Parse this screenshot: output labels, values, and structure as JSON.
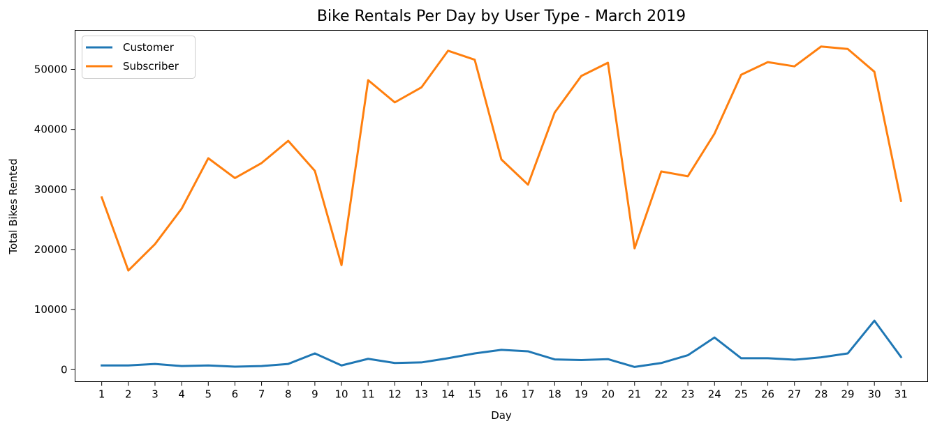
{
  "chart_data": {
    "type": "line",
    "title": "Bike Rentals Per Day by User Type - March 2019",
    "xlabel": "Day",
    "ylabel": "Total Bikes Rented",
    "x": [
      1,
      2,
      3,
      4,
      5,
      6,
      7,
      8,
      9,
      10,
      11,
      12,
      13,
      14,
      15,
      16,
      17,
      18,
      19,
      20,
      21,
      22,
      23,
      24,
      25,
      26,
      27,
      28,
      29,
      30,
      31
    ],
    "xlim": [
      0,
      32
    ],
    "ylim": [
      -2000,
      56500
    ],
    "yticks": [
      0,
      10000,
      20000,
      30000,
      40000,
      50000
    ],
    "grid": false,
    "legend_position": "upper-left",
    "series": [
      {
        "name": "Customer",
        "color": "#1f77b4",
        "values": [
          700,
          700,
          950,
          600,
          700,
          500,
          600,
          950,
          2700,
          700,
          1800,
          1100,
          1200,
          1900,
          2700,
          3300,
          3050,
          1700,
          1600,
          1750,
          450,
          1100,
          2400,
          5350,
          1900,
          1900,
          1650,
          2050,
          2700,
          8150,
          2100
        ]
      },
      {
        "name": "Subscriber",
        "color": "#ff7f0e",
        "values": [
          28700,
          16500,
          20900,
          26800,
          35200,
          31900,
          34400,
          38100,
          33100,
          17400,
          48200,
          44500,
          47000,
          53100,
          51600,
          35000,
          30800,
          42800,
          48900,
          51100,
          20200,
          33000,
          32200,
          39300,
          49100,
          51200,
          50500,
          53800,
          53400,
          49600,
          28100
        ]
      }
    ]
  }
}
